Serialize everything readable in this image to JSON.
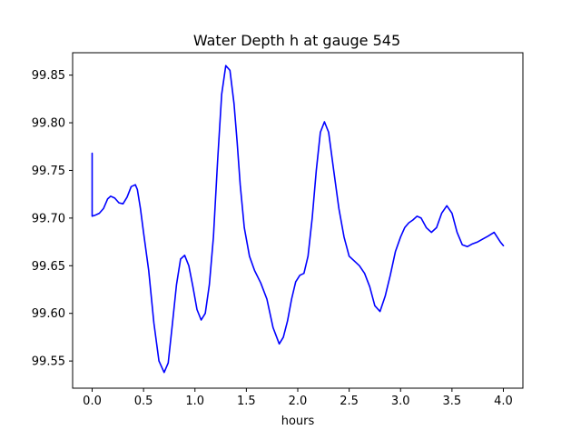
{
  "chart_data": {
    "type": "line",
    "title": "Water Depth h at gauge 545",
    "xlabel": "hours",
    "ylabel": "",
    "xlim": [
      -0.19,
      4.19
    ],
    "ylim": [
      99.5215,
      99.8735
    ],
    "xticks": [
      0.0,
      0.5,
      1.0,
      1.5,
      2.0,
      2.5,
      3.0,
      3.5,
      4.0
    ],
    "xtick_labels": [
      "0.0",
      "0.5",
      "1.0",
      "1.5",
      "2.0",
      "2.5",
      "3.0",
      "3.5",
      "4.0"
    ],
    "yticks": [
      99.55,
      99.6,
      99.65,
      99.7,
      99.75,
      99.8,
      99.85
    ],
    "ytick_labels": [
      "99.55",
      "99.60",
      "99.65",
      "99.70",
      "99.75",
      "99.80",
      "99.85"
    ],
    "grid": false,
    "legend": "none",
    "series": [
      {
        "color": "#0000ff",
        "x": [
          0.0,
          0.0,
          0.03,
          0.07,
          0.11,
          0.15,
          0.18,
          0.22,
          0.26,
          0.3,
          0.34,
          0.38,
          0.42,
          0.44,
          0.47,
          0.5,
          0.55,
          0.6,
          0.65,
          0.7,
          0.74,
          0.78,
          0.82,
          0.86,
          0.9,
          0.94,
          0.98,
          1.02,
          1.06,
          1.1,
          1.14,
          1.18,
          1.22,
          1.26,
          1.3,
          1.34,
          1.38,
          1.41,
          1.44,
          1.48,
          1.53,
          1.58,
          1.64,
          1.7,
          1.76,
          1.82,
          1.86,
          1.9,
          1.94,
          1.98,
          2.02,
          2.06,
          2.1,
          2.14,
          2.18,
          2.22,
          2.26,
          2.3,
          2.35,
          2.4,
          2.45,
          2.5,
          2.55,
          2.6,
          2.65,
          2.7,
          2.75,
          2.8,
          2.85,
          2.9,
          2.95,
          3.0,
          3.04,
          3.08,
          3.12,
          3.16,
          3.2,
          3.25,
          3.3,
          3.35,
          3.4,
          3.45,
          3.5,
          3.55,
          3.6,
          3.65,
          3.7,
          3.75,
          3.8,
          3.85,
          3.88,
          3.91,
          3.94,
          3.97,
          4.0
        ],
        "y": [
          99.768,
          99.702,
          99.703,
          99.705,
          99.71,
          99.72,
          99.723,
          99.721,
          99.716,
          99.715,
          99.722,
          99.733,
          99.735,
          99.73,
          99.71,
          99.685,
          99.645,
          99.59,
          99.55,
          99.538,
          99.548,
          99.588,
          99.63,
          99.657,
          99.661,
          99.65,
          99.628,
          99.604,
          99.593,
          99.6,
          99.63,
          99.68,
          99.76,
          99.83,
          99.86,
          99.855,
          99.82,
          99.78,
          99.735,
          99.69,
          99.66,
          99.645,
          99.632,
          99.615,
          99.585,
          99.568,
          99.575,
          99.592,
          99.615,
          99.633,
          99.64,
          99.642,
          99.66,
          99.7,
          99.75,
          99.79,
          99.801,
          99.79,
          99.75,
          99.71,
          99.68,
          99.66,
          99.655,
          99.65,
          99.642,
          99.628,
          99.608,
          99.602,
          99.618,
          99.64,
          99.665,
          99.68,
          99.69,
          99.695,
          99.698,
          99.702,
          99.7,
          99.69,
          99.685,
          99.69,
          99.705,
          99.713,
          99.705,
          99.685,
          99.672,
          99.67,
          99.673,
          99.675,
          99.678,
          99.681,
          99.683,
          99.685,
          99.68,
          99.675,
          99.671
        ]
      }
    ]
  }
}
